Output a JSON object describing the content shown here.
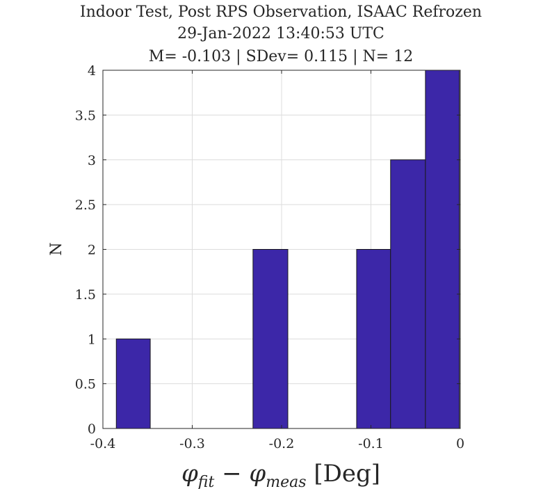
{
  "chart_data": {
    "type": "bar",
    "title": [
      "Indoor Test, Post RPS Observation, ISAAC Refrozen",
      "29-Jan-2022 13:40:53 UTC",
      "M= -0.103 | SDev= 0.115 | N= 12"
    ],
    "xlabel": {
      "phi": "φ",
      "fit": "fit",
      "minus": " − ",
      "meas": "meas",
      "unit": " [Deg]"
    },
    "ylabel": "N",
    "xlim": [
      -0.4,
      0
    ],
    "ylim": [
      0,
      4
    ],
    "x_ticks": [
      "-0.4",
      "-0.3",
      "-0.2",
      "-0.1",
      "0"
    ],
    "y_ticks": [
      "0",
      "0.5",
      "1",
      "1.5",
      "2",
      "2.5",
      "3",
      "3.5",
      "4"
    ],
    "grid": true,
    "bar_color": "#3c27a8",
    "bins": [
      {
        "start": -0.385,
        "end": -0.347,
        "count": 1
      },
      {
        "start": -0.347,
        "end": -0.309,
        "count": 0
      },
      {
        "start": -0.309,
        "end": -0.27,
        "count": 0
      },
      {
        "start": -0.27,
        "end": -0.232,
        "count": 0
      },
      {
        "start": -0.232,
        "end": -0.193,
        "count": 2
      },
      {
        "start": -0.193,
        "end": -0.155,
        "count": 0
      },
      {
        "start": -0.155,
        "end": -0.116,
        "count": 0
      },
      {
        "start": -0.116,
        "end": -0.078,
        "count": 2
      },
      {
        "start": -0.078,
        "end": -0.039,
        "count": 3
      },
      {
        "start": -0.039,
        "end": -0.001,
        "count": 4
      }
    ]
  }
}
